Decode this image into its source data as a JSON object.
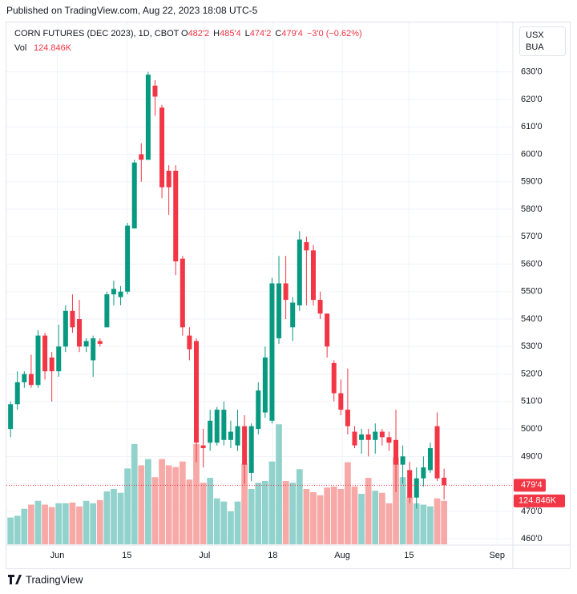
{
  "published": "Published on TradingView.com, Aug 22, 2023 18:08 UTC-5",
  "footer": "TradingView",
  "chart_data": {
    "type": "candlestick",
    "title": "CORN FUTURES (DEC 2023), 1D, CBOT",
    "header_ohlc": [
      {
        "letter": "O",
        "label": "482'2"
      },
      {
        "letter": "H",
        "label": "485'4"
      },
      {
        "letter": "L",
        "label": "474'2"
      },
      {
        "letter": "C",
        "label": "479'4"
      }
    ],
    "change_label": "−3'0 (−0.62%)",
    "volume_title": "Vol",
    "currency": [
      "USX",
      "BUA"
    ],
    "last_price_label": "479'4",
    "last_volume_label": "124.846K",
    "up_color": "#089981",
    "down_color": "#f23645",
    "volume_up_color": "#92d2cc",
    "volume_down_color": "#f7a9a7",
    "open": [
      500,
      509,
      517,
      520,
      516,
      534,
      526,
      521,
      530,
      543,
      540,
      530,
      525,
      532,
      537,
      549,
      548,
      550,
      573,
      600,
      598,
      625,
      617,
      594,
      594,
      562,
      534,
      532,
      494,
      495,
      495,
      496,
      496,
      494,
      501,
      484,
      500,
      506,
      503,
      533,
      553,
      537,
      545,
      568,
      565,
      547,
      542,
      524,
      513,
      507,
      499,
      496,
      498,
      496,
      499,
      497,
      496,
      487,
      485,
      475,
      482,
      485,
      501,
      482.25
    ],
    "high": [
      510,
      521,
      521,
      527,
      536,
      535,
      528,
      538,
      545,
      549,
      547,
      533,
      534,
      533,
      550,
      554,
      552,
      575,
      598,
      604,
      630,
      627,
      618,
      596,
      596,
      563,
      537,
      533,
      500,
      507,
      508,
      510,
      503,
      507,
      505,
      502,
      517,
      530,
      555,
      563,
      563,
      548,
      572,
      570,
      567,
      550,
      542,
      525,
      518,
      522,
      501,
      500,
      500,
      502,
      500,
      499,
      507,
      494,
      488,
      486,
      490,
      495,
      506,
      485.5
    ],
    "low": [
      497,
      507,
      515,
      515,
      515,
      518,
      510,
      519,
      528,
      535,
      528,
      528,
      519,
      530,
      537,
      545,
      545,
      549,
      573,
      590,
      598,
      614,
      584,
      578,
      556,
      534,
      525,
      488,
      486,
      492,
      494,
      494,
      493,
      492,
      480,
      481,
      498,
      504,
      502,
      531,
      540,
      532,
      543,
      545,
      545,
      540,
      526,
      510,
      505,
      498,
      493,
      491,
      490,
      491,
      494,
      492,
      477,
      480,
      473,
      471,
      479,
      484,
      481,
      474.25
    ],
    "close": [
      509,
      517,
      520,
      516,
      534,
      521,
      521,
      530,
      543,
      537,
      530,
      532,
      533,
      531,
      549,
      551,
      550,
      574,
      597,
      598,
      629,
      621,
      588,
      588,
      561,
      537,
      529,
      495,
      493,
      503,
      507,
      507,
      499,
      501,
      487,
      501,
      514,
      526,
      553,
      553,
      547,
      546,
      569,
      565,
      547,
      542,
      530,
      513,
      507,
      501,
      494,
      498,
      496,
      499,
      497,
      495,
      487,
      490,
      475,
      482,
      486,
      493,
      482,
      479.5
    ],
    "volume": [
      77,
      82,
      102,
      114,
      125,
      114,
      107,
      118,
      118,
      120,
      109,
      125,
      118,
      127,
      152,
      159,
      148,
      218,
      288,
      227,
      245,
      193,
      245,
      227,
      222,
      238,
      186,
      288,
      177,
      191,
      132,
      123,
      95,
      123,
      232,
      159,
      177,
      182,
      238,
      345,
      182,
      177,
      216,
      159,
      150,
      141,
      163,
      166,
      159,
      236,
      166,
      145,
      191,
      154,
      148,
      118,
      250,
      193,
      136,
      118,
      114,
      109,
      132,
      124.846
    ],
    "volume_ylim": [
      0,
      1500
    ],
    "xlim": [
      -0.6,
      73
    ],
    "xticks": [
      {
        "value": 6.8,
        "label": "Jun"
      },
      {
        "value": 16.9,
        "label": "15"
      },
      {
        "value": 28.2,
        "label": "Jul"
      },
      {
        "value": 38.1,
        "label": "18"
      },
      {
        "value": 48.2,
        "label": "Aug"
      },
      {
        "value": 57.9,
        "label": "15"
      },
      {
        "value": 70.7,
        "label": "Sep"
      }
    ],
    "ylim": [
      458,
      648
    ],
    "yticks": [
      {
        "value": 460,
        "label": "460'0"
      },
      {
        "value": 470,
        "label": "470'0"
      },
      {
        "value": 480,
        "label": "480'0"
      },
      {
        "value": 490,
        "label": "490'0"
      },
      {
        "value": 500,
        "label": "500'0"
      },
      {
        "value": 510,
        "label": "510'0"
      },
      {
        "value": 520,
        "label": "520'0"
      },
      {
        "value": 530,
        "label": "530'0"
      },
      {
        "value": 540,
        "label": "540'0"
      },
      {
        "value": 550,
        "label": "550'0"
      },
      {
        "value": 560,
        "label": "560'0"
      },
      {
        "value": 570,
        "label": "570'0"
      },
      {
        "value": 580,
        "label": "580'0"
      },
      {
        "value": 590,
        "label": "590'0"
      },
      {
        "value": 600,
        "label": "600'0"
      },
      {
        "value": 610,
        "label": "610'0"
      },
      {
        "value": 620,
        "label": "620'0"
      },
      {
        "value": 630,
        "label": "630'0"
      }
    ],
    "grid": true
  }
}
